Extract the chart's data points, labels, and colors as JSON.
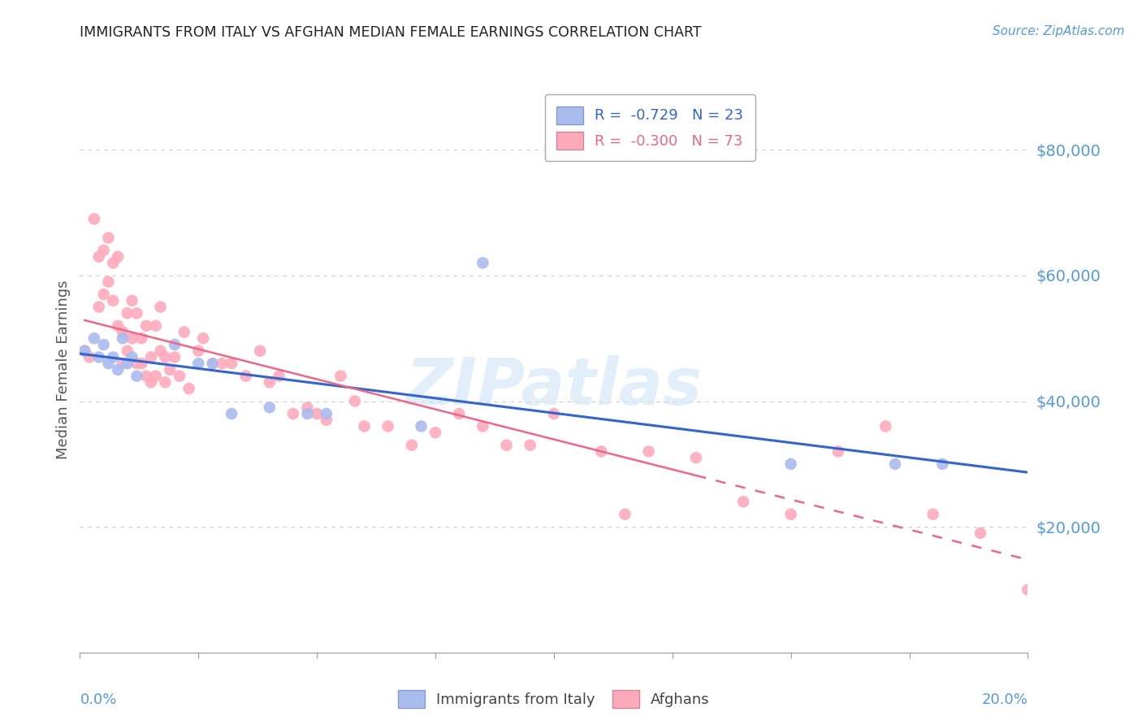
{
  "title": "IMMIGRANTS FROM ITALY VS AFGHAN MEDIAN FEMALE EARNINGS CORRELATION CHART",
  "source": "Source: ZipAtlas.com",
  "ylabel": "Median Female Earnings",
  "yticks": [
    20000,
    40000,
    60000,
    80000
  ],
  "ytick_labels": [
    "$20,000",
    "$40,000",
    "$60,000",
    "$80,000"
  ],
  "xlim": [
    0.0,
    0.2
  ],
  "ylim": [
    0,
    90000
  ],
  "legend_italy": "R =  -0.729   N = 23",
  "legend_afghan": "R =  -0.300   N = 73",
  "legend_label_italy": "Immigrants from Italy",
  "legend_label_afghan": "Afghans",
  "italy_color": "#aabbee",
  "afghan_color": "#ffaabb",
  "italy_trendline_color": "#3366cc",
  "afghan_trendline_color": "#ee6688",
  "background_color": "#ffffff",
  "grid_color": "#cccccc",
  "title_color": "#333333",
  "ytick_color": "#5599dd",
  "watermark": "ZIPatlas",
  "italy_x": [
    0.001,
    0.003,
    0.004,
    0.005,
    0.006,
    0.007,
    0.008,
    0.009,
    0.01,
    0.011,
    0.012,
    0.02,
    0.025,
    0.028,
    0.032,
    0.04,
    0.048,
    0.052,
    0.072,
    0.085,
    0.15,
    0.172,
    0.182
  ],
  "italy_y": [
    48000,
    50000,
    47000,
    49000,
    46000,
    47000,
    45000,
    50000,
    46000,
    47000,
    44000,
    49000,
    46000,
    46000,
    38000,
    39000,
    38000,
    38000,
    36000,
    62000,
    30000,
    30000,
    30000
  ],
  "afghan_x": [
    0.001,
    0.002,
    0.003,
    0.004,
    0.004,
    0.005,
    0.005,
    0.006,
    0.006,
    0.007,
    0.007,
    0.008,
    0.008,
    0.009,
    0.009,
    0.01,
    0.01,
    0.011,
    0.011,
    0.012,
    0.012,
    0.013,
    0.013,
    0.014,
    0.014,
    0.015,
    0.015,
    0.016,
    0.016,
    0.017,
    0.017,
    0.018,
    0.018,
    0.019,
    0.02,
    0.021,
    0.022,
    0.023,
    0.025,
    0.026,
    0.028,
    0.03,
    0.032,
    0.035,
    0.038,
    0.04,
    0.042,
    0.045,
    0.048,
    0.05,
    0.052,
    0.055,
    0.058,
    0.06,
    0.065,
    0.07,
    0.075,
    0.08,
    0.085,
    0.09,
    0.095,
    0.1,
    0.11,
    0.115,
    0.12,
    0.13,
    0.14,
    0.15,
    0.16,
    0.17,
    0.18,
    0.19,
    0.2
  ],
  "afghan_y": [
    48000,
    47000,
    69000,
    63000,
    55000,
    64000,
    57000,
    66000,
    59000,
    62000,
    56000,
    63000,
    52000,
    51000,
    46000,
    54000,
    48000,
    56000,
    50000,
    54000,
    46000,
    50000,
    46000,
    52000,
    44000,
    47000,
    43000,
    52000,
    44000,
    55000,
    48000,
    47000,
    43000,
    45000,
    47000,
    44000,
    51000,
    42000,
    48000,
    50000,
    46000,
    46000,
    46000,
    44000,
    48000,
    43000,
    44000,
    38000,
    39000,
    38000,
    37000,
    44000,
    40000,
    36000,
    36000,
    33000,
    35000,
    38000,
    36000,
    33000,
    33000,
    38000,
    32000,
    22000,
    32000,
    31000,
    24000,
    22000,
    32000,
    36000,
    22000,
    19000,
    10000
  ],
  "afghan_trendline_solid_end_x": 0.13,
  "italy_trendline_start_x": 0.0,
  "italy_trendline_end_x": 0.2
}
